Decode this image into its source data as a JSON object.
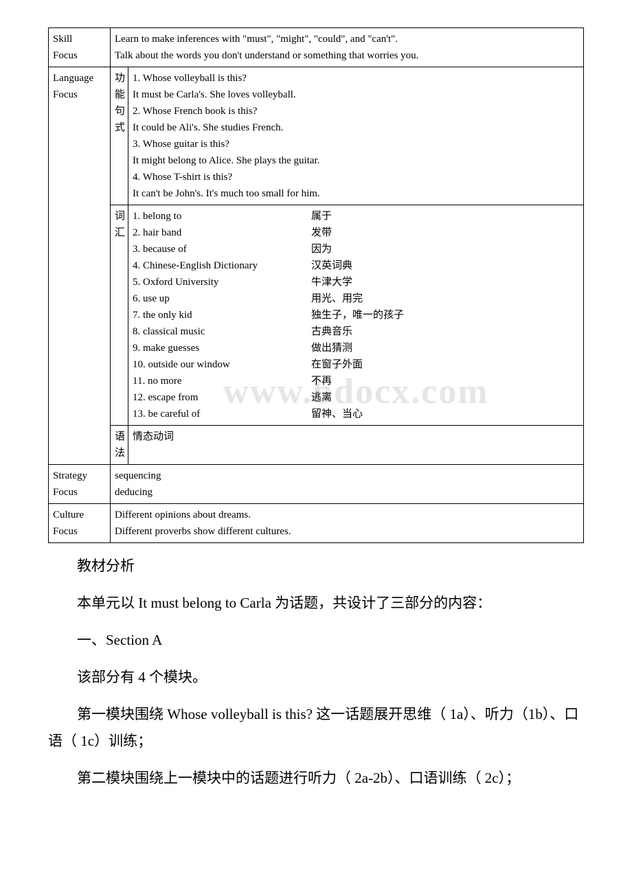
{
  "watermark": "www.bdocx.com",
  "table": {
    "skillFocus": {
      "label1": "Skill",
      "label2": "Focus",
      "line1": "Learn to make inferences with \"must\", \"might\", \"could\", and \"can't\".",
      "line2": "Talk about the words you don't understand or something that worries you."
    },
    "languageFocus": {
      "label1": "Language",
      "label2": "Focus",
      "func": {
        "sub1": "功",
        "sub2": "能",
        "sub3": "句",
        "sub4": "式",
        "l1": "1. Whose volleyball is this?",
        "l2": "    It must be Carla's. She loves volleyball.",
        "l3": "2. Whose French book is this?",
        "l4": "    It could be Ali's. She studies French.",
        "l5": "3. Whose guitar is this?",
        "l6": "    It might belong to Alice. She plays the guitar.",
        "l7": "4. Whose T-shirt is this?",
        "l8": "    It can't be John's. It's much too small for him."
      },
      "vocab": {
        "sub1": "词",
        "sub2": "汇",
        "items": [
          {
            "en": "1. belong to",
            "zh": "属于"
          },
          {
            "en": "2. hair band",
            "zh": "发带"
          },
          {
            "en": "3. because of",
            "zh": "因为"
          },
          {
            "en": "4. Chinese-English Dictionary",
            "zh": "汉英词典"
          },
          {
            "en": "5. Oxford University",
            "zh": "牛津大学"
          },
          {
            "en": "6. use up",
            "zh": "用光、用完"
          },
          {
            "en": "7. the only kid",
            "zh": "独生子，唯一的孩子"
          },
          {
            "en": "8. classical music",
            "zh": "古典音乐"
          },
          {
            "en": "9. make guesses",
            "zh": "做出猜测"
          },
          {
            "en": "10. outside our window",
            "zh": "在窗子外面"
          },
          {
            "en": "11. no more",
            "zh": "不再"
          },
          {
            "en": "12. escape from",
            "zh": "逃离"
          },
          {
            "en": "13. be careful of",
            "zh": "留神、当心"
          }
        ]
      },
      "grammar": {
        "sub1": "语",
        "sub2": "法",
        "text": "情态动词"
      }
    },
    "strategyFocus": {
      "label1": "Strategy",
      "label2": "Focus",
      "line1": "sequencing",
      "line2": "deducing"
    },
    "cultureFocus": {
      "label1": "Culture",
      "label2": "Focus",
      "line1": "Different opinions about dreams.",
      "line2": "Different proverbs show different cultures."
    }
  },
  "body": {
    "p1": "教材分析",
    "p2": "本单元以 It must belong to Carla 为话题，共设计了三部分的内容：",
    "p3": "一、Section A",
    "p4": "该部分有 4 个模块。",
    "p5": "第一模块围绕 Whose volleyball is this? 这一话题展开思维（ 1a）、听力（1b）、口语（ 1c）训练；",
    "p6": "第二模块围绕上一模块中的话题进行听力（ 2a-2b）、口语训练（ 2c）；"
  }
}
